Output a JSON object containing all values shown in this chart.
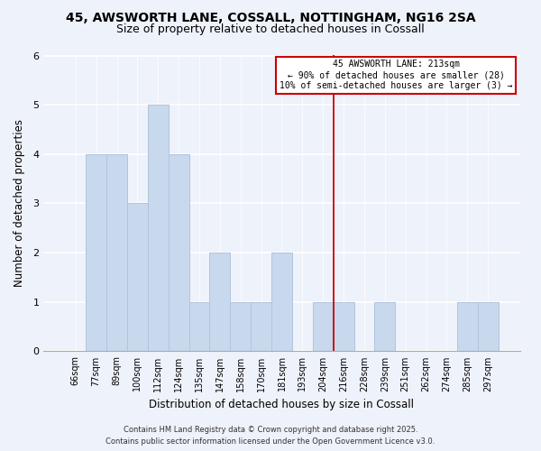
{
  "title": "45, AWSWORTH LANE, COSSALL, NOTTINGHAM, NG16 2SA",
  "subtitle": "Size of property relative to detached houses in Cossall",
  "xlabel": "Distribution of detached houses by size in Cossall",
  "ylabel": "Number of detached properties",
  "bar_labels": [
    "66sqm",
    "77sqm",
    "89sqm",
    "100sqm",
    "112sqm",
    "124sqm",
    "135sqm",
    "147sqm",
    "158sqm",
    "170sqm",
    "181sqm",
    "193sqm",
    "204sqm",
    "216sqm",
    "228sqm",
    "239sqm",
    "251sqm",
    "262sqm",
    "274sqm",
    "285sqm",
    "297sqm"
  ],
  "bar_heights": [
    0,
    4,
    4,
    3,
    5,
    4,
    1,
    2,
    1,
    1,
    2,
    0,
    1,
    1,
    0,
    1,
    0,
    0,
    0,
    1,
    1
  ],
  "bar_color": "#c8d9ee",
  "bar_edge_color": "#b0c4de",
  "vline_color": "#cc0000",
  "annotation_title": "45 AWSWORTH LANE: 213sqm",
  "annotation_line1": "← 90% of detached houses are smaller (28)",
  "annotation_line2": "10% of semi-detached houses are larger (3) →",
  "annotation_box_edge": "#cc0000",
  "annotation_box_fill": "#ffffff",
  "ylim": [
    0,
    6
  ],
  "yticks": [
    0,
    1,
    2,
    3,
    4,
    5,
    6
  ],
  "footer1": "Contains HM Land Registry data © Crown copyright and database right 2025.",
  "footer2": "Contains public sector information licensed under the Open Government Licence v3.0.",
  "title_fontsize": 10,
  "subtitle_fontsize": 9,
  "label_fontsize": 8.5,
  "tick_fontsize": 7,
  "footer_fontsize": 6,
  "bg_color": "#eef2fa"
}
